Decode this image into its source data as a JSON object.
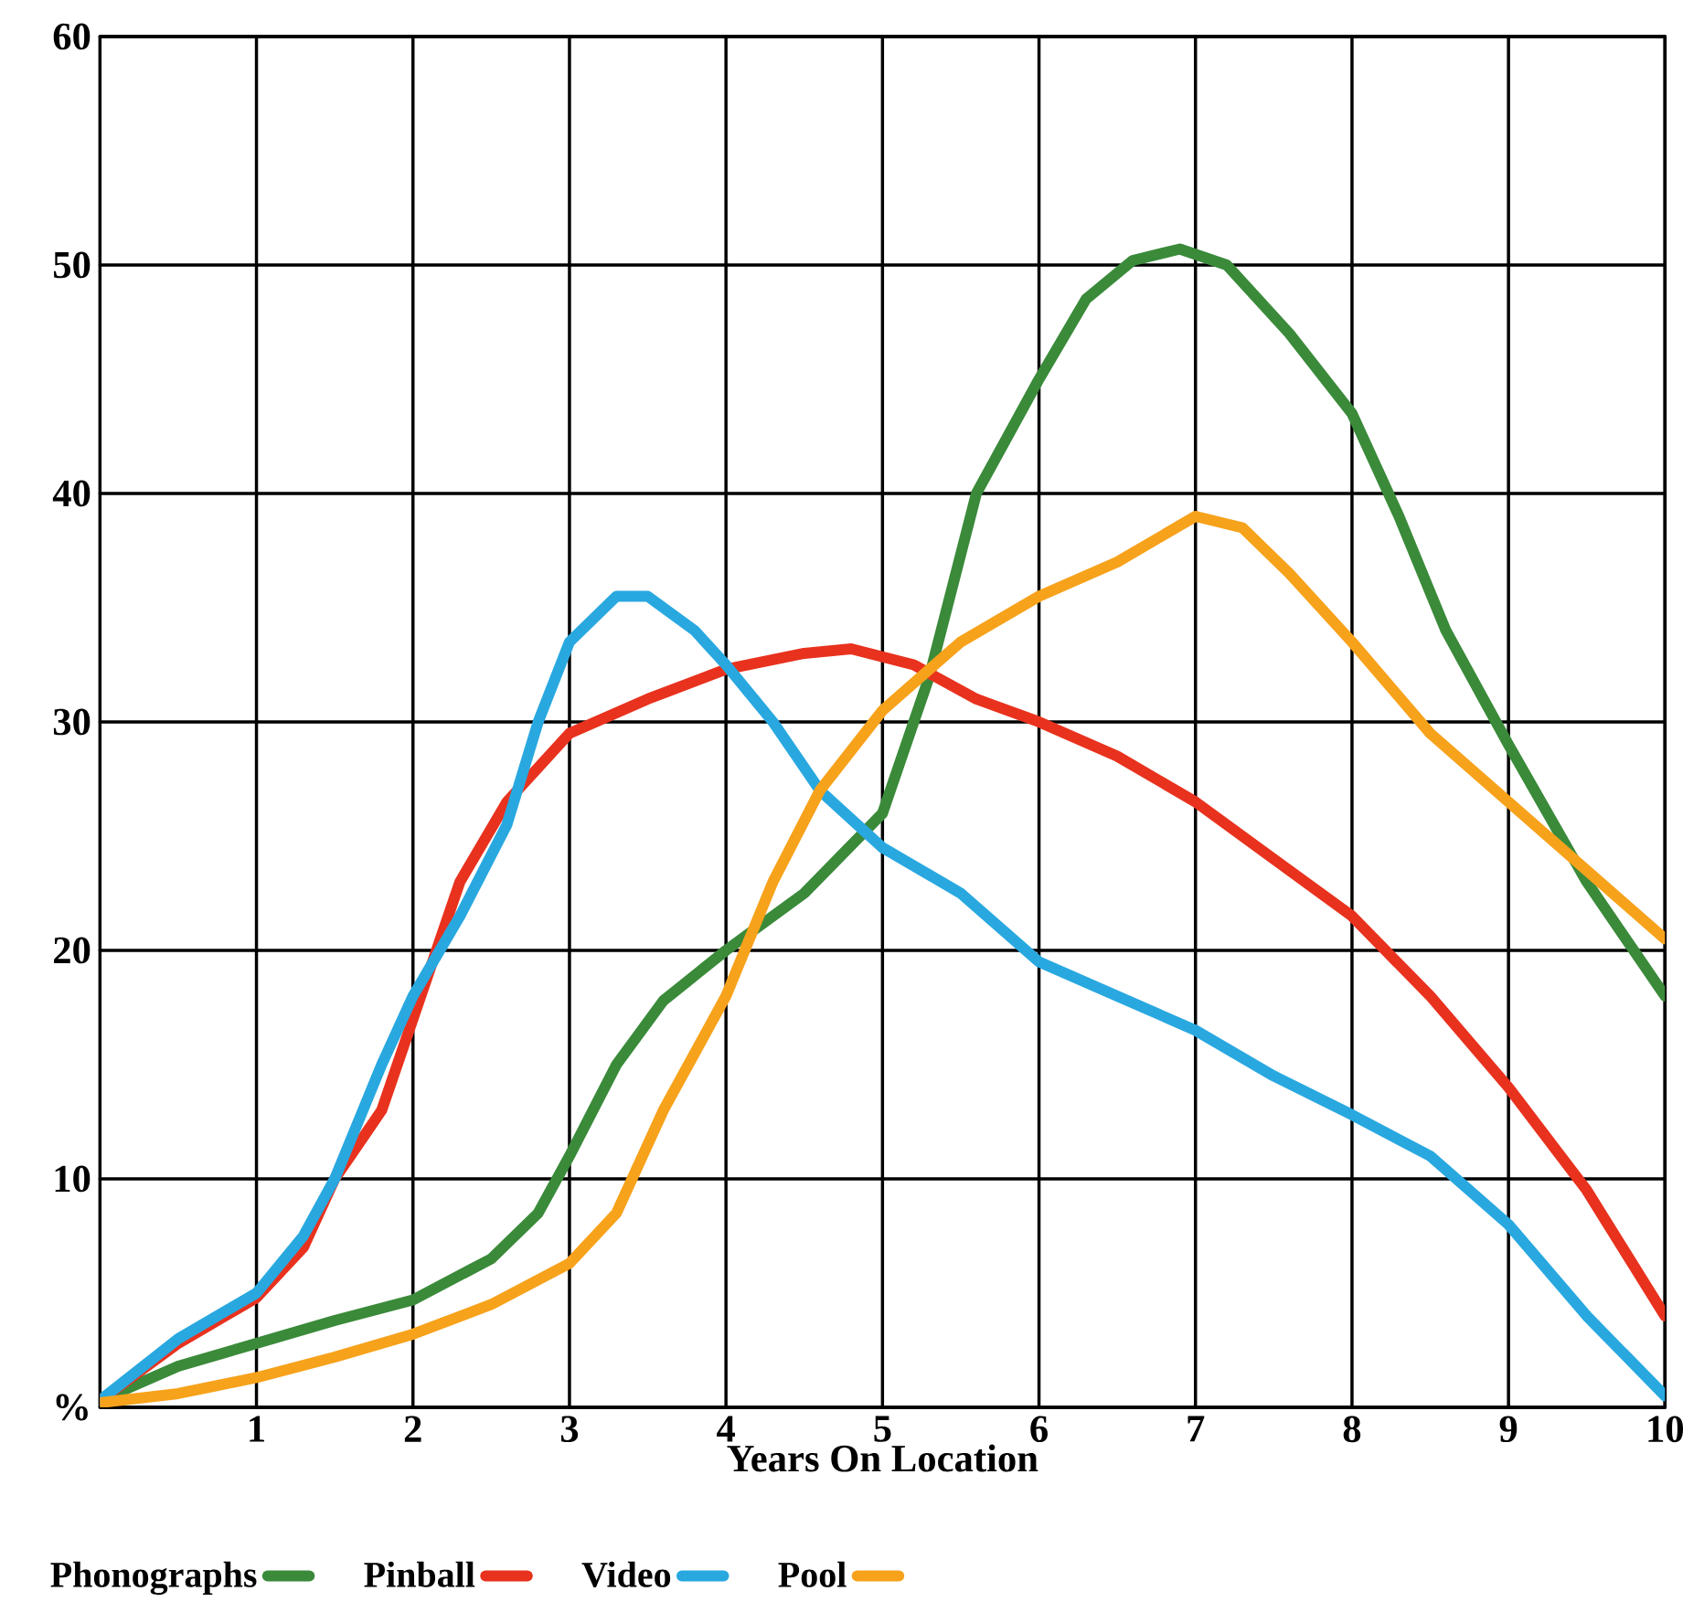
{
  "chart_data": {
    "type": "line",
    "xlabel": "Years On Location",
    "xlim": [
      0,
      10
    ],
    "ylim": [
      0,
      60
    ],
    "xticks": [
      1,
      2,
      3,
      4,
      5,
      6,
      7,
      8,
      9,
      10
    ],
    "yticks": [
      {
        "value": 0,
        "label": "%"
      },
      10,
      20,
      30,
      40,
      50,
      60
    ],
    "grid": true,
    "legend": "bottom",
    "line_style": "solid",
    "marker": "none",
    "series": [
      {
        "name": "Phonographs",
        "color": "#3a8a3a",
        "x": [
          0,
          0.5,
          1,
          1.5,
          2,
          2.5,
          2.8,
          3,
          3.3,
          3.6,
          4,
          4.5,
          5,
          5.3,
          5.6,
          6,
          6.3,
          6.6,
          6.9,
          7.2,
          7.6,
          8,
          8.3,
          8.6,
          9,
          9.5,
          10
        ],
        "values": [
          0.3,
          1.8,
          2.8,
          3.8,
          4.7,
          6.5,
          8.5,
          11,
          15,
          17.8,
          20,
          22.5,
          26,
          32,
          40,
          45,
          48.5,
          50.2,
          50.7,
          50,
          47,
          43.5,
          39,
          34,
          29,
          23,
          18
        ]
      },
      {
        "name": "Pinball",
        "color": "#e8321e",
        "x": [
          0,
          0.5,
          1,
          1.3,
          1.5,
          1.8,
          2,
          2.3,
          2.6,
          3,
          3.5,
          4,
          4.5,
          4.8,
          5.2,
          5.6,
          6,
          6.5,
          7,
          7.5,
          8,
          8.5,
          9,
          9.5,
          10
        ],
        "values": [
          0.3,
          2.8,
          4.8,
          7,
          10,
          13,
          17,
          23,
          26.5,
          29.5,
          31,
          32.3,
          33,
          33.2,
          32.5,
          31,
          30,
          28.5,
          26.5,
          24,
          21.5,
          18,
          14,
          9.5,
          4
        ]
      },
      {
        "name": "Video",
        "color": "#29a8e0",
        "x": [
          0,
          0.5,
          1,
          1.3,
          1.5,
          1.8,
          2,
          2.3,
          2.6,
          2.8,
          3,
          3.3,
          3.5,
          3.8,
          4,
          4.3,
          4.6,
          5,
          5.5,
          6,
          6.5,
          7,
          7.5,
          8,
          8.5,
          9,
          9.5,
          10
        ],
        "values": [
          0.3,
          3,
          5,
          7.5,
          10,
          15,
          18,
          21.5,
          25.5,
          30,
          33.5,
          35.5,
          35.5,
          34,
          32.5,
          30,
          27,
          24.5,
          22.5,
          19.5,
          18,
          16.5,
          14.5,
          12.8,
          11,
          8,
          4,
          0.5
        ]
      },
      {
        "name": "Pool",
        "color": "#f7a21b",
        "x": [
          0,
          0.5,
          1,
          1.5,
          2,
          2.5,
          3,
          3.3,
          3.6,
          4,
          4.3,
          4.6,
          5,
          5.5,
          6,
          6.5,
          7,
          7.3,
          7.6,
          8,
          8.5,
          9,
          9.5,
          10
        ],
        "values": [
          0.2,
          0.6,
          1.3,
          2.2,
          3.2,
          4.5,
          6.3,
          8.5,
          13,
          18,
          23,
          27,
          30.5,
          33.5,
          35.5,
          37,
          39,
          38.5,
          36.5,
          33.5,
          29.5,
          26.5,
          23.5,
          20.5
        ]
      }
    ]
  }
}
